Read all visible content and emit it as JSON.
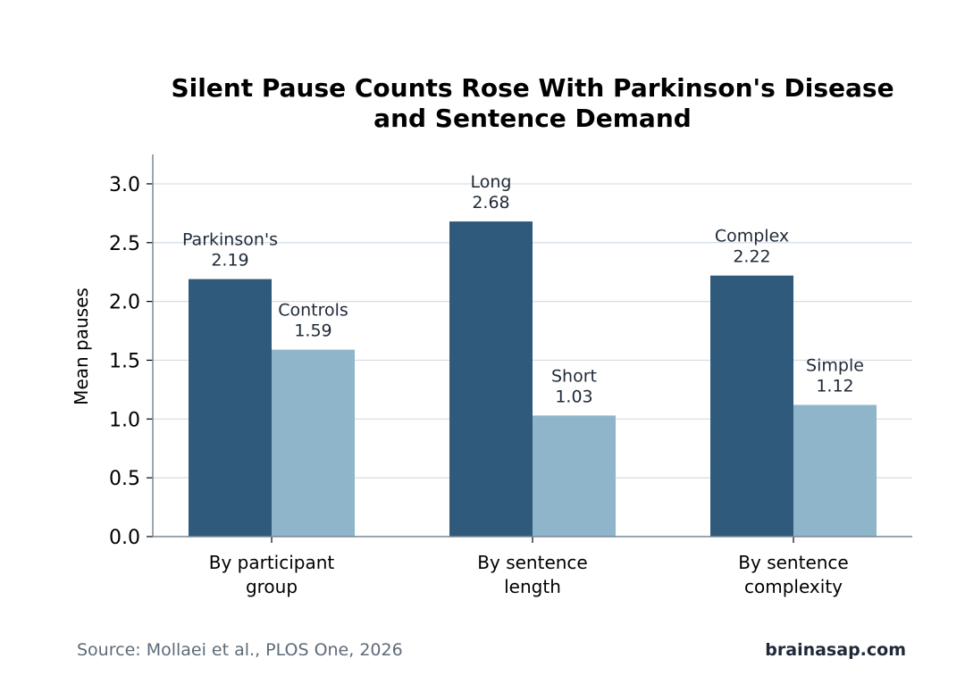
{
  "chart_data": {
    "type": "bar",
    "title_lines": [
      "Silent Pause Counts Rose With Parkinson's Disease",
      "and Sentence Demand"
    ],
    "ylabel": "Mean pauses",
    "ylim": [
      0,
      3.25
    ],
    "yticks": [
      "0.0",
      "0.5",
      "1.0",
      "1.5",
      "2.0",
      "2.5",
      "3.0"
    ],
    "grid": true,
    "legend": "none",
    "categories": [
      {
        "lines": [
          "By participant",
          "group"
        ],
        "bars": [
          {
            "label": "Parkinson's",
            "value": 2.19,
            "value_label": "2.19",
            "color": "#2f5a7b"
          },
          {
            "label": "Controls",
            "value": 1.59,
            "value_label": "1.59",
            "color": "#8fb5ca"
          }
        ]
      },
      {
        "lines": [
          "By sentence",
          "length"
        ],
        "bars": [
          {
            "label": "Long",
            "value": 2.68,
            "value_label": "2.68",
            "color": "#2f5a7b"
          },
          {
            "label": "Short",
            "value": 1.03,
            "value_label": "1.03",
            "color": "#8fb5ca"
          }
        ]
      },
      {
        "lines": [
          "By sentence",
          "complexity"
        ],
        "bars": [
          {
            "label": "Complex",
            "value": 2.22,
            "value_label": "2.22",
            "color": "#2f5a7b"
          },
          {
            "label": "Simple",
            "value": 1.12,
            "value_label": "1.12",
            "color": "#8fb5ca"
          }
        ]
      }
    ],
    "colors": {
      "grid": "#d5dde6",
      "axis": "#7a8794",
      "label_text": "#1f2937"
    }
  },
  "footer": {
    "source": "Source: Mollaei et al., PLOS One, 2026",
    "brand": "brainasap.com"
  }
}
